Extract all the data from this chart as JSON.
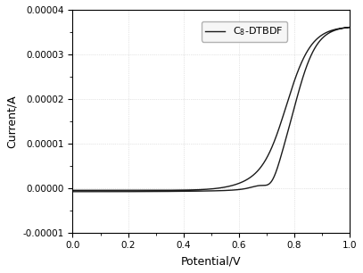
{
  "xlabel": "Potential/V",
  "ylabel": "Current/A",
  "legend_label": "C$_8$-DTBDF",
  "xlim": [
    0.0,
    1.0
  ],
  "ylim": [
    -1e-05,
    4e-05
  ],
  "line_color": "#1a1a1a",
  "line_width": 1.0,
  "background_color": "#ffffff",
  "grid_color": "#cccccc",
  "tick_labelsize": 7.5,
  "axis_labelsize": 9
}
